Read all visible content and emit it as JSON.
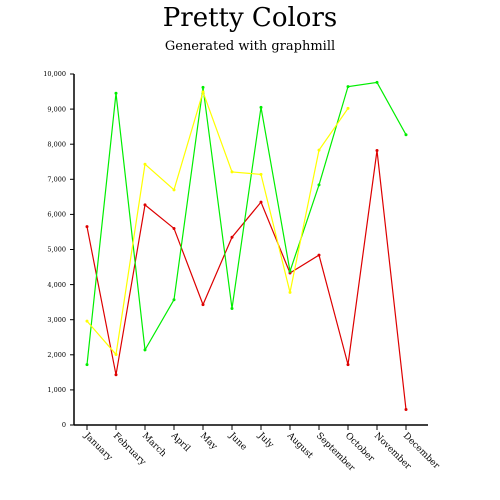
{
  "chart_data": {
    "type": "line",
    "title": "Pretty Colors",
    "subtitle": "Generated with graphmill",
    "xlabel": "",
    "ylabel": "",
    "ylim": [
      0,
      10000
    ],
    "y_ticks": [
      0,
      1000,
      2000,
      3000,
      4000,
      5000,
      6000,
      7000,
      8000,
      9000,
      10000
    ],
    "y_tick_labels": [
      "0",
      "1,000",
      "2,000",
      "3,000",
      "4,000",
      "5,000",
      "6,000",
      "7,000",
      "8,000",
      "9,000",
      "10,000"
    ],
    "grid": false,
    "categories": [
      "January",
      "February",
      "March",
      "April",
      "May",
      "June",
      "July",
      "August",
      "September",
      "October",
      "November",
      "December"
    ],
    "series": [
      {
        "color": "#dd0000",
        "values": [
          5650,
          1430,
          6270,
          5600,
          3430,
          5350,
          6350,
          4330,
          4840,
          1720,
          7820,
          440
        ]
      },
      {
        "color": "#00ee00",
        "values": [
          1720,
          9450,
          2140,
          3570,
          9620,
          3320,
          9050,
          4380,
          6840,
          9640,
          9760,
          8270
        ]
      },
      {
        "color": "#ffff00",
        "values": [
          2960,
          2010,
          7430,
          6700,
          9490,
          7210,
          7140,
          3780,
          7830,
          9020,
          null,
          null
        ]
      }
    ]
  }
}
